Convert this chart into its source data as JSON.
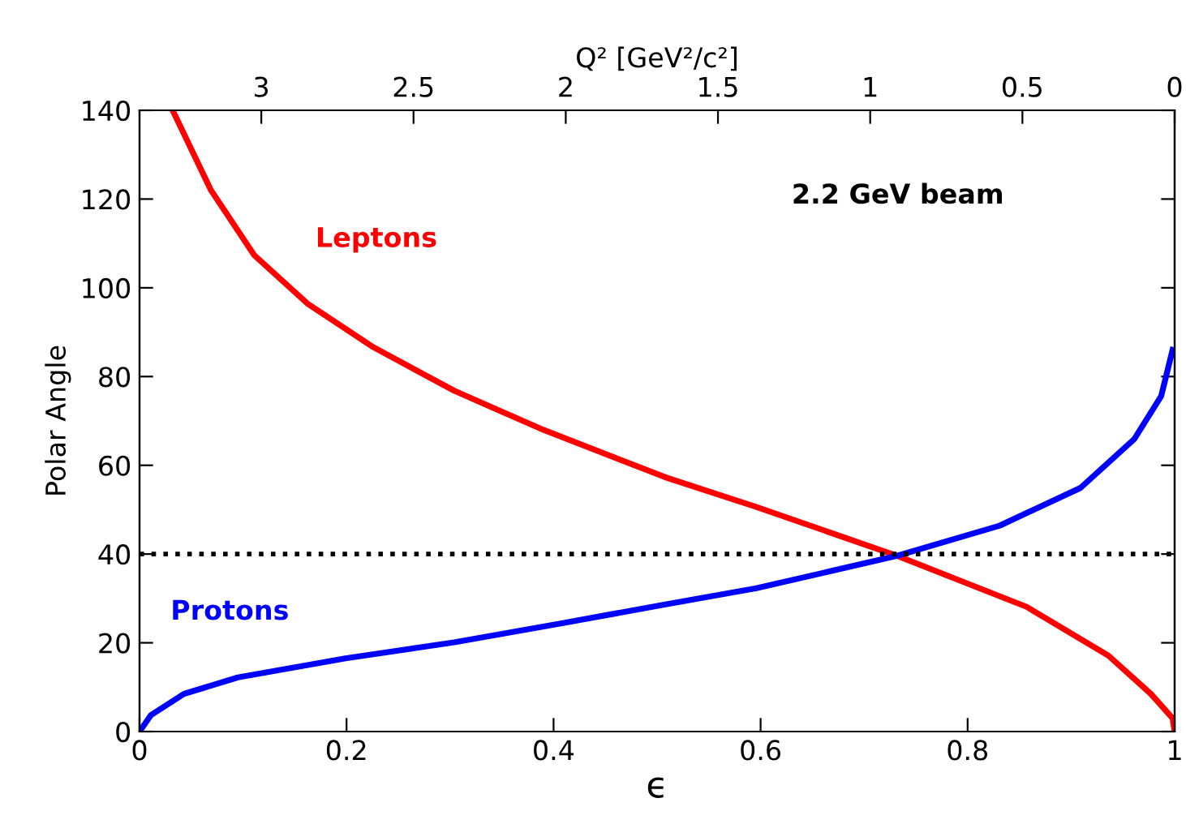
{
  "chart_data": {
    "type": "line",
    "xlabel": "ϵ",
    "ylabel": "Polar Angle",
    "x2label": "Q² [GeV²/c²]",
    "xlim": [
      0,
      1
    ],
    "xticks": [
      0,
      0.2,
      0.4,
      0.6,
      0.8,
      1
    ],
    "ylim": [
      0,
      140
    ],
    "yticks": [
      0,
      20,
      40,
      60,
      80,
      100,
      120,
      140
    ],
    "x2lim": [
      3.4,
      0
    ],
    "x2ticks": [
      3,
      2.5,
      2,
      1.5,
      1,
      0.5,
      0
    ],
    "series": [
      {
        "name": "Leptons",
        "color": "#ff0000",
        "x": [
          0.032,
          0.069,
          0.111,
          0.163,
          0.226,
          0.304,
          0.387,
          0.508,
          0.596,
          0.732,
          0.857,
          0.936,
          0.977,
          0.998,
          1
        ],
        "values": [
          140,
          122,
          107.3,
          96.3,
          86.6,
          76.8,
          68.3,
          57.3,
          50.6,
          39.6,
          28.1,
          17.1,
          8.5,
          3,
          0
        ]
      },
      {
        "name": "Protons",
        "color": "#0000ff",
        "x": [
          0,
          0.011,
          0.043,
          0.095,
          0.199,
          0.304,
          0.408,
          0.507,
          0.596,
          0.732,
          0.831,
          0.909,
          0.961,
          0.987,
          0.998
        ],
        "values": [
          0,
          3.7,
          8.5,
          12.2,
          16.5,
          20.1,
          24.4,
          28.6,
          32.3,
          39.6,
          46.4,
          54.9,
          65.9,
          75.6,
          86
        ]
      }
    ],
    "ref_lines": [
      {
        "axis": "y",
        "value": 40,
        "color": "#000000",
        "line_style": "dotted"
      }
    ],
    "annotations": [
      "2.2 GeV beam"
    ],
    "grid": false,
    "legend": false,
    "marker": "none",
    "line_style": "solid"
  }
}
